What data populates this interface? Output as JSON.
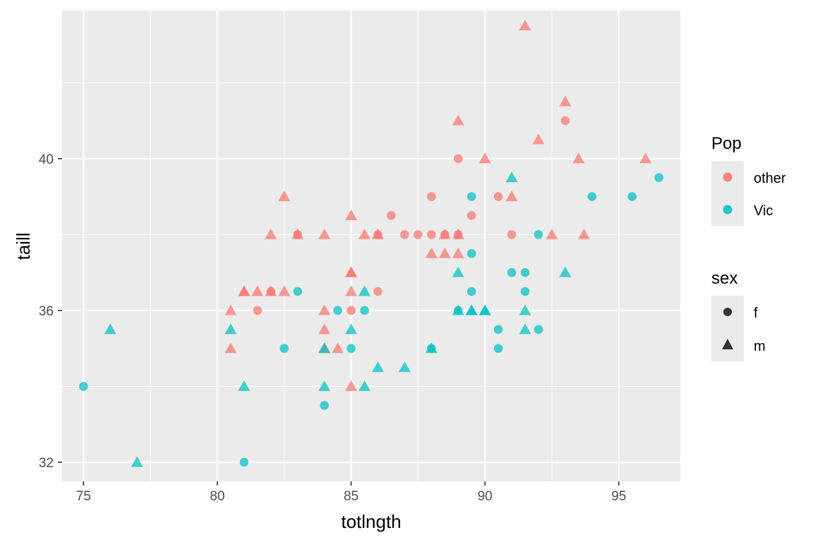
{
  "chart_data": {
    "type": "scatter",
    "title": "",
    "xlabel": "totlngth",
    "ylabel": "taill",
    "xlim": [
      74.2,
      97.3
    ],
    "ylim": [
      31.5,
      43.9
    ],
    "x_ticks": [
      75,
      80,
      85,
      90,
      95
    ],
    "x_tick_labels": [
      "75",
      "80",
      "85",
      "90",
      "95"
    ],
    "y_ticks": [
      32,
      36,
      40
    ],
    "y_tick_labels": [
      "32",
      "36",
      "40"
    ],
    "grid": true,
    "legend_position": "right",
    "legends": [
      {
        "title": "Pop",
        "aesthetic": "color",
        "entries": [
          {
            "label": "other",
            "color": "#F8766D"
          },
          {
            "label": "Vic",
            "color": "#00BFC4"
          }
        ]
      },
      {
        "title": "sex",
        "aesthetic": "shape",
        "entries": [
          {
            "label": "f",
            "shape": "circle"
          },
          {
            "label": "m",
            "shape": "triangle"
          }
        ]
      }
    ],
    "points": [
      {
        "x": 91.5,
        "y": 43.5,
        "pop": "other",
        "sex": "m"
      },
      {
        "x": 93.0,
        "y": 41.5,
        "pop": "other",
        "sex": "m"
      },
      {
        "x": 89.0,
        "y": 41.0,
        "pop": "other",
        "sex": "m"
      },
      {
        "x": 93.0,
        "y": 41.0,
        "pop": "other",
        "sex": "f"
      },
      {
        "x": 92.0,
        "y": 40.5,
        "pop": "other",
        "sex": "m"
      },
      {
        "x": 89.0,
        "y": 40.0,
        "pop": "other",
        "sex": "f"
      },
      {
        "x": 90.0,
        "y": 40.0,
        "pop": "other",
        "sex": "m"
      },
      {
        "x": 93.5,
        "y": 40.0,
        "pop": "other",
        "sex": "m"
      },
      {
        "x": 96.0,
        "y": 40.0,
        "pop": "other",
        "sex": "m"
      },
      {
        "x": 82.5,
        "y": 39.0,
        "pop": "other",
        "sex": "m"
      },
      {
        "x": 88.0,
        "y": 39.0,
        "pop": "other",
        "sex": "f"
      },
      {
        "x": 90.5,
        "y": 39.0,
        "pop": "other",
        "sex": "f"
      },
      {
        "x": 91.0,
        "y": 39.0,
        "pop": "other",
        "sex": "m"
      },
      {
        "x": 85.0,
        "y": 38.5,
        "pop": "other",
        "sex": "m"
      },
      {
        "x": 86.5,
        "y": 38.5,
        "pop": "other",
        "sex": "f"
      },
      {
        "x": 89.5,
        "y": 38.5,
        "pop": "other",
        "sex": "f"
      },
      {
        "x": 82.0,
        "y": 38.0,
        "pop": "other",
        "sex": "m"
      },
      {
        "x": 83.0,
        "y": 38.0,
        "pop": "other",
        "sex": "m"
      },
      {
        "x": 83.0,
        "y": 38.0,
        "pop": "other",
        "sex": "f"
      },
      {
        "x": 84.0,
        "y": 38.0,
        "pop": "other",
        "sex": "m"
      },
      {
        "x": 85.5,
        "y": 38.0,
        "pop": "other",
        "sex": "m"
      },
      {
        "x": 86.0,
        "y": 38.0,
        "pop": "other",
        "sex": "m"
      },
      {
        "x": 86.0,
        "y": 38.0,
        "pop": "other",
        "sex": "f"
      },
      {
        "x": 87.0,
        "y": 38.0,
        "pop": "other",
        "sex": "f"
      },
      {
        "x": 87.5,
        "y": 38.0,
        "pop": "other",
        "sex": "f"
      },
      {
        "x": 88.0,
        "y": 38.0,
        "pop": "other",
        "sex": "f"
      },
      {
        "x": 88.5,
        "y": 38.0,
        "pop": "other",
        "sex": "m"
      },
      {
        "x": 88.5,
        "y": 38.0,
        "pop": "other",
        "sex": "f"
      },
      {
        "x": 89.0,
        "y": 38.0,
        "pop": "other",
        "sex": "m"
      },
      {
        "x": 89.0,
        "y": 38.0,
        "pop": "other",
        "sex": "f"
      },
      {
        "x": 91.0,
        "y": 38.0,
        "pop": "other",
        "sex": "f"
      },
      {
        "x": 92.5,
        "y": 38.0,
        "pop": "other",
        "sex": "m"
      },
      {
        "x": 93.7,
        "y": 38.0,
        "pop": "other",
        "sex": "m"
      },
      {
        "x": 88.0,
        "y": 37.5,
        "pop": "other",
        "sex": "m"
      },
      {
        "x": 88.5,
        "y": 37.5,
        "pop": "other",
        "sex": "m"
      },
      {
        "x": 89.0,
        "y": 37.5,
        "pop": "other",
        "sex": "m"
      },
      {
        "x": 85.0,
        "y": 37.0,
        "pop": "other",
        "sex": "m"
      },
      {
        "x": 85.0,
        "y": 37.0,
        "pop": "other",
        "sex": "m"
      },
      {
        "x": 81.0,
        "y": 36.5,
        "pop": "other",
        "sex": "m"
      },
      {
        "x": 81.0,
        "y": 36.5,
        "pop": "other",
        "sex": "m"
      },
      {
        "x": 81.5,
        "y": 36.5,
        "pop": "other",
        "sex": "m"
      },
      {
        "x": 82.0,
        "y": 36.5,
        "pop": "other",
        "sex": "m"
      },
      {
        "x": 82.0,
        "y": 36.5,
        "pop": "other",
        "sex": "f"
      },
      {
        "x": 82.5,
        "y": 36.5,
        "pop": "other",
        "sex": "m"
      },
      {
        "x": 85.0,
        "y": 36.5,
        "pop": "other",
        "sex": "m"
      },
      {
        "x": 86.0,
        "y": 36.5,
        "pop": "other",
        "sex": "f"
      },
      {
        "x": 80.5,
        "y": 36.0,
        "pop": "other",
        "sex": "m"
      },
      {
        "x": 81.5,
        "y": 36.0,
        "pop": "other",
        "sex": "f"
      },
      {
        "x": 84.0,
        "y": 36.0,
        "pop": "other",
        "sex": "m"
      },
      {
        "x": 85.0,
        "y": 36.0,
        "pop": "other",
        "sex": "f"
      },
      {
        "x": 84.0,
        "y": 35.5,
        "pop": "other",
        "sex": "m"
      },
      {
        "x": 80.5,
        "y": 35.0,
        "pop": "other",
        "sex": "m"
      },
      {
        "x": 84.0,
        "y": 35.0,
        "pop": "other",
        "sex": "m"
      },
      {
        "x": 84.5,
        "y": 35.0,
        "pop": "other",
        "sex": "m"
      },
      {
        "x": 85.0,
        "y": 34.0,
        "pop": "other",
        "sex": "m"
      },
      {
        "x": 91.0,
        "y": 39.5,
        "pop": "Vic",
        "sex": "m"
      },
      {
        "x": 96.5,
        "y": 39.5,
        "pop": "Vic",
        "sex": "f"
      },
      {
        "x": 89.5,
        "y": 39.0,
        "pop": "Vic",
        "sex": "f"
      },
      {
        "x": 94.0,
        "y": 39.0,
        "pop": "Vic",
        "sex": "f"
      },
      {
        "x": 95.5,
        "y": 39.0,
        "pop": "Vic",
        "sex": "f"
      },
      {
        "x": 92.0,
        "y": 38.0,
        "pop": "Vic",
        "sex": "f"
      },
      {
        "x": 89.5,
        "y": 37.5,
        "pop": "Vic",
        "sex": "f"
      },
      {
        "x": 89.0,
        "y": 37.0,
        "pop": "Vic",
        "sex": "m"
      },
      {
        "x": 91.0,
        "y": 37.0,
        "pop": "Vic",
        "sex": "f"
      },
      {
        "x": 91.5,
        "y": 37.0,
        "pop": "Vic",
        "sex": "f"
      },
      {
        "x": 93.0,
        "y": 37.0,
        "pop": "Vic",
        "sex": "m"
      },
      {
        "x": 83.0,
        "y": 36.5,
        "pop": "Vic",
        "sex": "f"
      },
      {
        "x": 85.5,
        "y": 36.5,
        "pop": "Vic",
        "sex": "m"
      },
      {
        "x": 89.5,
        "y": 36.5,
        "pop": "Vic",
        "sex": "f"
      },
      {
        "x": 91.5,
        "y": 36.5,
        "pop": "Vic",
        "sex": "f"
      },
      {
        "x": 84.5,
        "y": 36.0,
        "pop": "Vic",
        "sex": "f"
      },
      {
        "x": 85.5,
        "y": 36.0,
        "pop": "Vic",
        "sex": "f"
      },
      {
        "x": 89.0,
        "y": 36.0,
        "pop": "Vic",
        "sex": "f"
      },
      {
        "x": 89.0,
        "y": 36.0,
        "pop": "Vic",
        "sex": "m"
      },
      {
        "x": 89.5,
        "y": 36.0,
        "pop": "Vic",
        "sex": "m"
      },
      {
        "x": 89.5,
        "y": 36.0,
        "pop": "Vic",
        "sex": "m"
      },
      {
        "x": 90.0,
        "y": 36.0,
        "pop": "Vic",
        "sex": "m"
      },
      {
        "x": 90.0,
        "y": 36.0,
        "pop": "Vic",
        "sex": "m"
      },
      {
        "x": 91.5,
        "y": 36.0,
        "pop": "Vic",
        "sex": "m"
      },
      {
        "x": 76.0,
        "y": 35.5,
        "pop": "Vic",
        "sex": "m"
      },
      {
        "x": 80.5,
        "y": 35.5,
        "pop": "Vic",
        "sex": "m"
      },
      {
        "x": 85.0,
        "y": 35.5,
        "pop": "Vic",
        "sex": "m"
      },
      {
        "x": 90.5,
        "y": 35.5,
        "pop": "Vic",
        "sex": "f"
      },
      {
        "x": 91.5,
        "y": 35.5,
        "pop": "Vic",
        "sex": "m"
      },
      {
        "x": 92.0,
        "y": 35.5,
        "pop": "Vic",
        "sex": "f"
      },
      {
        "x": 82.5,
        "y": 35.0,
        "pop": "Vic",
        "sex": "f"
      },
      {
        "x": 84.0,
        "y": 35.0,
        "pop": "Vic",
        "sex": "m"
      },
      {
        "x": 85.0,
        "y": 35.0,
        "pop": "Vic",
        "sex": "f"
      },
      {
        "x": 88.0,
        "y": 35.0,
        "pop": "Vic",
        "sex": "m"
      },
      {
        "x": 88.0,
        "y": 35.0,
        "pop": "Vic",
        "sex": "f"
      },
      {
        "x": 90.5,
        "y": 35.0,
        "pop": "Vic",
        "sex": "f"
      },
      {
        "x": 86.0,
        "y": 34.5,
        "pop": "Vic",
        "sex": "m"
      },
      {
        "x": 87.0,
        "y": 34.5,
        "pop": "Vic",
        "sex": "m"
      },
      {
        "x": 75.0,
        "y": 34.0,
        "pop": "Vic",
        "sex": "f"
      },
      {
        "x": 81.0,
        "y": 34.0,
        "pop": "Vic",
        "sex": "m"
      },
      {
        "x": 84.0,
        "y": 34.0,
        "pop": "Vic",
        "sex": "m"
      },
      {
        "x": 85.5,
        "y": 34.0,
        "pop": "Vic",
        "sex": "m"
      },
      {
        "x": 84.0,
        "y": 33.5,
        "pop": "Vic",
        "sex": "f"
      },
      {
        "x": 77.0,
        "y": 32.0,
        "pop": "Vic",
        "sex": "m"
      },
      {
        "x": 81.0,
        "y": 32.0,
        "pop": "Vic",
        "sex": "f"
      }
    ]
  }
}
